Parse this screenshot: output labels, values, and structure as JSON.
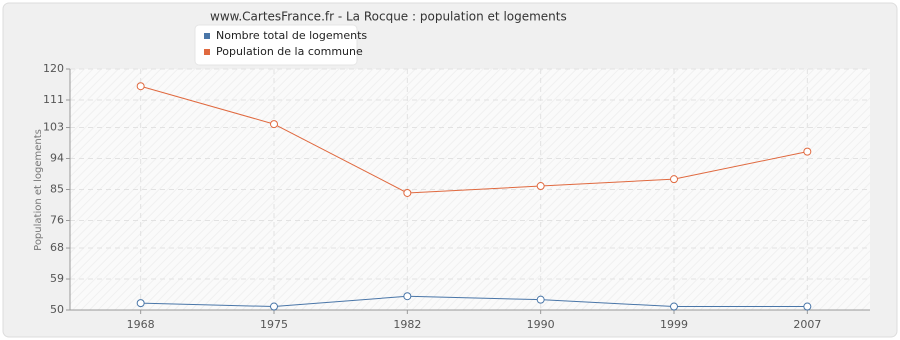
{
  "chart_data": {
    "type": "line",
    "title": "www.CartesFrance.fr - La Rocque : population et logements",
    "y_label": "Population et logements",
    "categories": [
      "1968",
      "1975",
      "1982",
      "1990",
      "1999",
      "2007"
    ],
    "series": [
      {
        "name": "Nombre total de logements",
        "color": "#4a76a8",
        "values": [
          52,
          51,
          54,
          53,
          51,
          51
        ]
      },
      {
        "name": "Population de la commune",
        "color": "#e0693f",
        "values": [
          115,
          104,
          84,
          86,
          88,
          96
        ]
      }
    ],
    "ylim": [
      50,
      120
    ],
    "yticks": [
      50,
      59,
      68,
      76,
      85,
      94,
      103,
      111,
      120
    ],
    "grid": true
  }
}
